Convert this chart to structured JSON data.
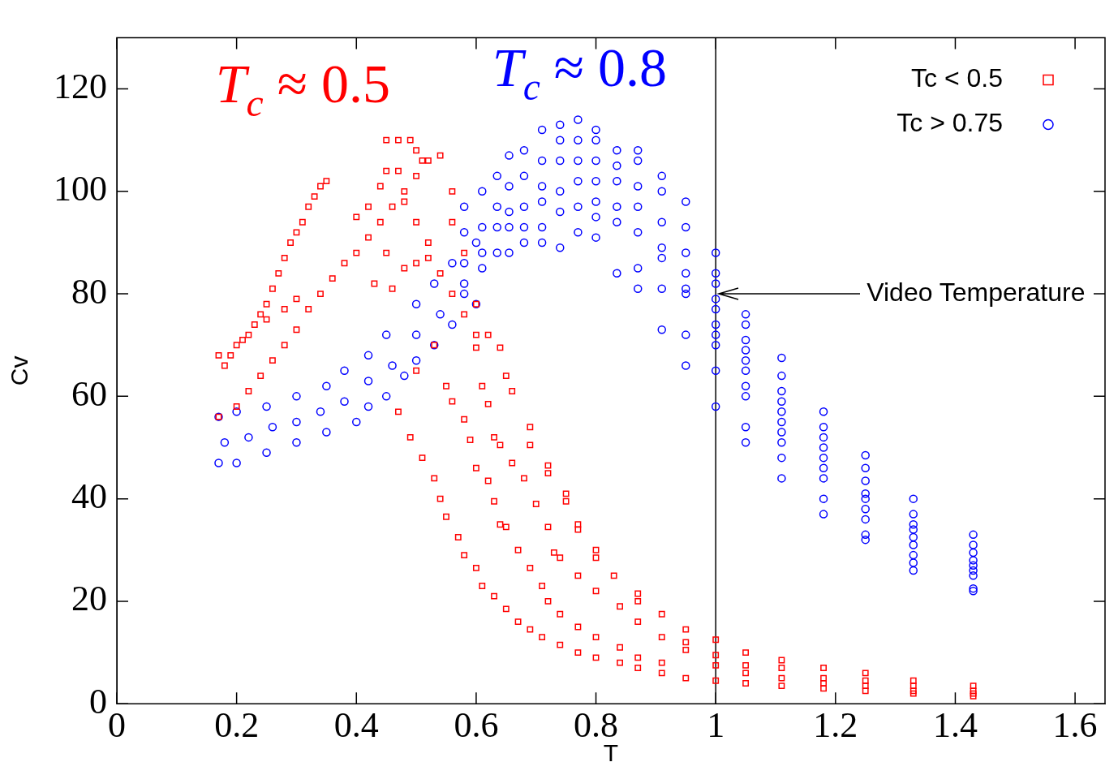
{
  "chart_data": {
    "type": "scatter",
    "xlabel": "T",
    "ylabel": "Cv",
    "xlim": [
      0,
      1.65
    ],
    "ylim": [
      0,
      130
    ],
    "xticks": [
      0,
      0.2,
      0.4,
      0.6,
      0.8,
      1,
      1.2,
      1.4,
      1.6
    ],
    "yticks": [
      0,
      20,
      40,
      60,
      80,
      100,
      120
    ],
    "grid": false,
    "legend": "top right",
    "ref_lines": [
      {
        "axis": "x",
        "value": 1,
        "color": "#000000"
      }
    ],
    "annotations": [
      "T$_{c}$ ≈ 0.5",
      "T$_{c}$ ≈ 0.8",
      {
        "text": "Video Temperature",
        "x": 1,
        "y": 80
      }
    ],
    "series": [
      {
        "name": "Tc < 0.5",
        "color": "#ff0000",
        "marker": "square",
        "x": [
          1,
          1,
          1,
          1,
          1.05,
          1.05,
          1.05,
          1.05,
          1.11,
          1.11,
          1.11,
          1.11,
          1.18,
          1.18,
          1.18,
          1.18,
          1.25,
          1.25,
          1.25,
          1.25,
          1.33,
          1.33,
          1.33,
          1.33,
          1.43,
          1.43,
          1.43,
          1.43,
          0.47,
          0.49,
          0.51,
          0.53,
          0.54,
          0.55,
          0.57,
          0.58,
          0.6,
          0.61,
          0.63,
          0.65,
          0.67,
          0.69,
          0.71,
          0.74,
          0.77,
          0.8,
          0.84,
          0.87,
          0.91,
          0.95,
          0.55,
          0.56,
          0.58,
          0.59,
          0.6,
          0.62,
          0.63,
          0.64,
          0.65,
          0.67,
          0.69,
          0.71,
          0.72,
          0.74,
          0.77,
          0.8,
          0.84,
          0.87,
          0.91,
          0.6,
          0.61,
          0.62,
          0.63,
          0.64,
          0.66,
          0.68,
          0.7,
          0.72,
          0.73,
          0.74,
          0.77,
          0.8,
          0.84,
          0.87,
          0.91,
          0.95,
          0.64,
          0.65,
          0.66,
          0.69,
          0.69,
          0.72,
          0.72,
          0.75,
          0.75,
          0.77,
          0.77,
          0.8,
          0.8,
          0.83,
          0.87,
          0.87,
          0.91,
          0.95,
          0.95,
          0.17,
          0.18,
          0.19,
          0.2,
          0.21,
          0.22,
          0.23,
          0.24,
          0.25,
          0.26,
          0.27,
          0.28,
          0.29,
          0.3,
          0.31,
          0.32,
          0.33,
          0.34,
          0.35,
          0.25,
          0.28,
          0.3,
          0.17,
          0.2,
          0.22,
          0.24,
          0.26,
          0.28,
          0.3,
          0.32,
          0.34,
          0.36,
          0.38,
          0.4,
          0.42,
          0.44,
          0.46,
          0.48,
          0.5,
          0.52,
          0.54,
          0.45,
          0.47,
          0.49,
          0.5,
          0.51,
          0.4,
          0.42,
          0.44,
          0.45,
          0.47,
          0.48,
          0.5,
          0.52,
          0.54,
          0.56,
          0.58,
          0.6,
          0.43,
          0.46,
          0.45,
          0.48,
          0.5,
          0.52,
          0.56,
          0.58,
          0.56,
          0.6,
          0.62,
          0.53,
          0.5
        ],
        "values": [
          12.5,
          9.5,
          7.5,
          4.5,
          10,
          7.5,
          6,
          4,
          8.5,
          7,
          5,
          3.5,
          7,
          5,
          4,
          3,
          6,
          4.5,
          3.5,
          2.5,
          4.5,
          3.5,
          2.5,
          2,
          3.5,
          2.5,
          2,
          1.5,
          57,
          52,
          48,
          44,
          40,
          36.5,
          32.5,
          29,
          26.5,
          23,
          21,
          18.5,
          16,
          14.5,
          13,
          11.5,
          10,
          9,
          8,
          7,
          6,
          5,
          62,
          59,
          55.5,
          51.5,
          46,
          43.5,
          39.5,
          35,
          34.5,
          30,
          26.5,
          23,
          20,
          17.5,
          15,
          13,
          11,
          9,
          8,
          69.5,
          62,
          58.5,
          52,
          50.5,
          47,
          44,
          39,
          34.5,
          29.5,
          28.5,
          25,
          22,
          19,
          16,
          13,
          10.5,
          69.5,
          64,
          61,
          54,
          50.5,
          46.5,
          45,
          41,
          39.5,
          35,
          34,
          30,
          28.5,
          25,
          21.5,
          20,
          17.5,
          14.5,
          12,
          68,
          66,
          68,
          70,
          71,
          72,
          74,
          76,
          78,
          81,
          84,
          87,
          90,
          92,
          94,
          97,
          99,
          101,
          102,
          75,
          77,
          79,
          56,
          58,
          61,
          64,
          67,
          70,
          73,
          77,
          80,
          83,
          86,
          88,
          91,
          94,
          97,
          100,
          103,
          106,
          107,
          110,
          110,
          110,
          108,
          106,
          95,
          97,
          101,
          104,
          104,
          98,
          94,
          90,
          84,
          80,
          76,
          72,
          82,
          81,
          88,
          85,
          86,
          87,
          94,
          88,
          100,
          78,
          72,
          70,
          65
        ]
      },
      {
        "name": "Tc > 0.75",
        "color": "#0000ff",
        "marker": "circle",
        "x": [
          0.17,
          0.2,
          0.25,
          0.3,
          0.35,
          0.4,
          0.42,
          0.45,
          0.48,
          0.5,
          0.53,
          0.56,
          0.6,
          0.17,
          0.2,
          0.25,
          0.3,
          0.35,
          0.38,
          0.42,
          0.45,
          0.5,
          0.53,
          0.56,
          0.6,
          0.18,
          0.22,
          0.26,
          0.3,
          0.34,
          0.38,
          0.42,
          0.46,
          0.5,
          0.54,
          0.58,
          0.58,
          0.58,
          0.58,
          0.58,
          0.61,
          0.61,
          0.61,
          0.61,
          0.635,
          0.635,
          0.635,
          0.635,
          0.655,
          0.655,
          0.655,
          0.655,
          0.655,
          0.68,
          0.68,
          0.68,
          0.68,
          0.68,
          0.71,
          0.71,
          0.71,
          0.71,
          0.71,
          0.71,
          0.74,
          0.74,
          0.74,
          0.74,
          0.74,
          0.74,
          0.77,
          0.77,
          0.77,
          0.77,
          0.77,
          0.77,
          0.8,
          0.8,
          0.8,
          0.8,
          0.8,
          0.8,
          0.8,
          0.835,
          0.835,
          0.835,
          0.835,
          0.835,
          0.835,
          0.87,
          0.87,
          0.87,
          0.87,
          0.87,
          0.87,
          0.87,
          0.91,
          0.91,
          0.91,
          0.91,
          0.91,
          0.91,
          0.91,
          0.95,
          0.95,
          0.95,
          0.95,
          0.95,
          0.95,
          0.95,
          0.95,
          1,
          1,
          1,
          1,
          1,
          1,
          1,
          1,
          1,
          1,
          1.05,
          1.05,
          1.05,
          1.05,
          1.05,
          1.05,
          1.05,
          1.05,
          1.05,
          1.05,
          1.11,
          1.11,
          1.11,
          1.11,
          1.11,
          1.11,
          1.11,
          1.11,
          1.11,
          1.11,
          1.18,
          1.18,
          1.18,
          1.18,
          1.18,
          1.18,
          1.18,
          1.18,
          1.18,
          1.25,
          1.25,
          1.25,
          1.25,
          1.25,
          1.25,
          1.25,
          1.25,
          1.25,
          1.33,
          1.33,
          1.33,
          1.33,
          1.33,
          1.33,
          1.33,
          1.33,
          1.33,
          1.43,
          1.43,
          1.43,
          1.43,
          1.43,
          1.43,
          1.43,
          1.43,
          1.43
        ],
        "values": [
          47,
          47,
          49,
          51,
          53,
          55,
          58,
          60,
          64,
          67,
          70,
          74,
          78,
          56,
          57,
          58,
          60,
          62,
          65,
          68,
          72,
          78,
          82,
          86,
          90,
          51,
          52,
          54,
          55,
          57,
          59,
          63,
          66,
          72,
          76,
          82,
          97,
          92,
          86,
          80,
          100,
          93,
          88,
          85,
          103,
          97,
          93,
          88,
          107,
          101,
          96,
          93,
          88,
          108,
          103,
          97,
          93,
          90,
          112,
          106,
          101,
          98,
          93,
          90,
          113,
          110,
          106,
          100,
          96,
          89,
          114,
          110,
          106,
          102,
          97,
          92,
          112,
          110,
          106,
          102,
          98,
          95,
          91,
          108,
          105,
          102,
          97,
          94,
          84,
          108,
          106,
          101,
          97,
          92,
          85,
          81,
          103,
          100,
          94,
          89,
          87,
          81,
          73,
          98,
          93,
          88,
          84,
          81,
          80,
          72,
          66,
          88,
          84,
          82,
          79,
          77,
          74,
          72,
          70,
          65,
          58,
          76,
          74,
          71,
          69,
          67,
          65,
          62,
          60,
          54,
          51,
          67.5,
          64,
          61,
          59,
          57,
          55,
          53,
          51,
          48,
          44,
          57,
          54,
          52,
          50,
          48,
          46,
          44,
          40,
          37,
          48.5,
          46,
          43.5,
          41,
          40,
          38,
          36,
          33,
          32,
          40,
          37,
          35,
          34,
          32.5,
          31,
          29,
          27.5,
          26,
          33,
          31,
          29.5,
          28,
          27,
          26,
          25,
          22.5,
          22
        ]
      }
    ]
  }
}
